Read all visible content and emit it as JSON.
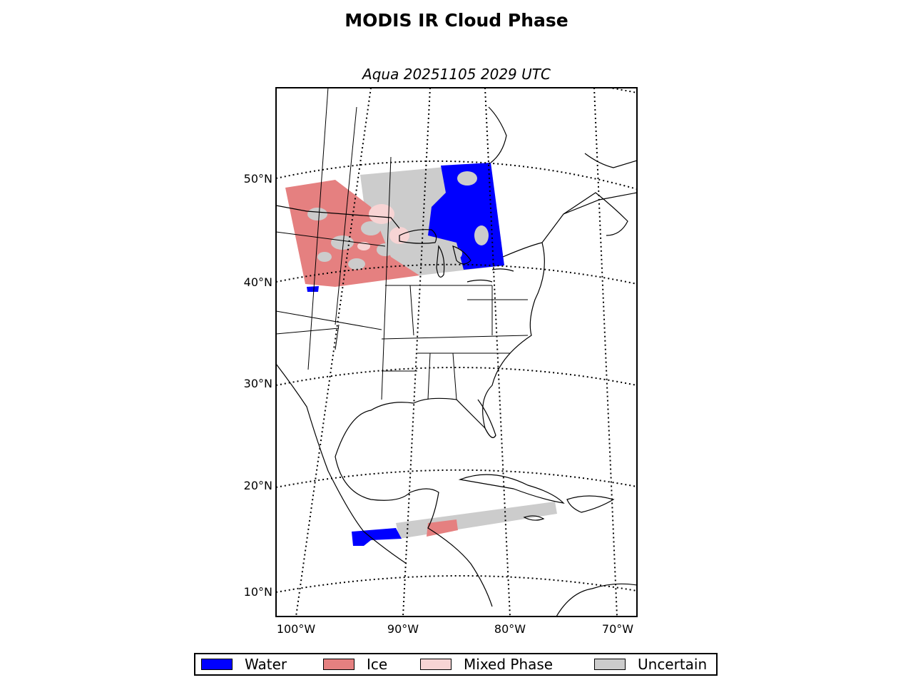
{
  "title": "MODIS IR Cloud Phase",
  "subtitle": "Aqua 20251105 2029 UTC",
  "map": {
    "projection": "lambert conformal",
    "latitude_labels": [
      "50°N",
      "40°N",
      "30°N",
      "20°N",
      "10°N"
    ],
    "longitude_labels": [
      "100°W",
      "90°W",
      "80°W",
      "70°W"
    ]
  },
  "legend": [
    {
      "label": "Water",
      "color": "#0000ff"
    },
    {
      "label": "Ice",
      "color": "#e58080"
    },
    {
      "label": "Mixed Phase",
      "color": "#f7d4d4"
    },
    {
      "label": "Uncertain",
      "color": "#cccccc"
    }
  ]
}
